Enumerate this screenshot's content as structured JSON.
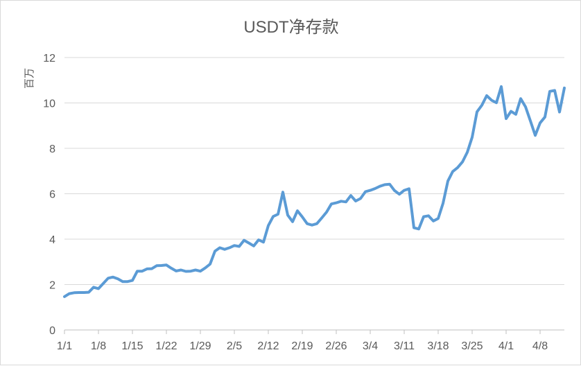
{
  "chart_data": {
    "type": "line",
    "title": "USDT净存款",
    "ylabel": "百万",
    "xlabel": "",
    "ylim": [
      0,
      12
    ],
    "yticks": [
      0,
      2,
      4,
      6,
      8,
      10,
      12
    ],
    "grid": "horizontal",
    "series_color": "#5b9bd5",
    "x_tick_labels": [
      "1/1",
      "1/8",
      "1/15",
      "1/22",
      "1/29",
      "2/5",
      "2/12",
      "2/19",
      "2/26",
      "3/4",
      "3/11",
      "3/18",
      "3/25",
      "4/1",
      "4/8"
    ],
    "x_start": "1/1",
    "x_end": "4/11",
    "series": [
      {
        "name": "",
        "values": [
          1.47,
          1.6,
          1.64,
          1.65,
          1.65,
          1.66,
          1.88,
          1.82,
          2.05,
          2.28,
          2.33,
          2.25,
          2.13,
          2.13,
          2.18,
          2.59,
          2.59,
          2.69,
          2.7,
          2.83,
          2.84,
          2.86,
          2.72,
          2.6,
          2.64,
          2.58,
          2.59,
          2.64,
          2.59,
          2.73,
          2.9,
          3.47,
          3.62,
          3.55,
          3.62,
          3.72,
          3.68,
          3.95,
          3.83,
          3.7,
          3.97,
          3.87,
          4.6,
          5.0,
          5.1,
          6.07,
          5.06,
          4.77,
          5.25,
          4.98,
          4.68,
          4.62,
          4.68,
          4.93,
          5.19,
          5.55,
          5.6,
          5.67,
          5.64,
          5.92,
          5.68,
          5.79,
          6.09,
          6.15,
          6.23,
          6.33,
          6.4,
          6.42,
          6.14,
          5.98,
          6.15,
          6.22,
          4.5,
          4.45,
          4.99,
          5.03,
          4.8,
          4.91,
          5.58,
          6.56,
          6.98,
          7.15,
          7.4,
          7.83,
          8.49,
          9.61,
          9.9,
          10.32,
          10.12,
          10.01,
          10.72,
          9.31,
          9.63,
          9.5,
          10.19,
          9.83,
          9.21,
          8.57,
          9.12,
          9.38,
          10.51,
          10.55,
          9.6,
          10.66
        ]
      }
    ]
  }
}
